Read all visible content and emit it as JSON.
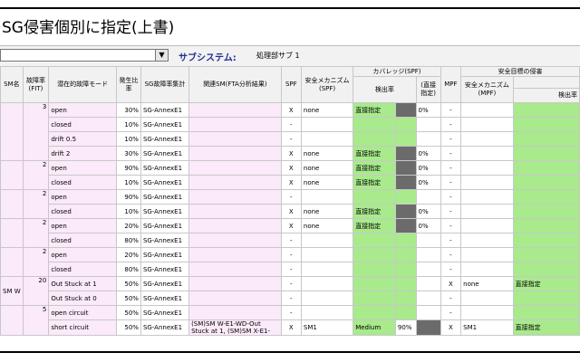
{
  "title": "SG侵害個別に指定(上書)",
  "toolbar": {
    "dropdown_value": "",
    "subsystem_label": "サブシステム:",
    "subsystem_value": "処理部サブ 1"
  },
  "headers": {
    "sm_name": "SM名",
    "fit": "故障率 (FIT)",
    "failure_mode": "潜在的故障モード",
    "ratio": "発生比率",
    "sg_aggregate": "SG故障率集計",
    "related_sm": "関連SM(FTA分析結果)",
    "spf": "SPF",
    "safety_mech_spf": "安全メカニズム (SPF)",
    "coverage_spf": "カバレッジ(SPF)",
    "detection_rate": "検出率",
    "direct_spec": "(直接指定)",
    "mpf": "MPF",
    "safety_goal_violation": "安全目標の侵害",
    "safety_mech_mpf": "安全メカニズム (MPF)",
    "detection_rate_2": "検出率"
  },
  "rows": [
    {
      "sm": "",
      "fit": "3",
      "mode": "open",
      "ratio": "30%",
      "sg": "SG-AnnexE1",
      "rel": "",
      "spf": "X",
      "mech": "none",
      "cov": "直接指定",
      "covdark": true,
      "pct": "0%",
      "mpf": "-",
      "mmech": "",
      "mcov": ""
    },
    {
      "sm": "",
      "fit": "",
      "mode": "closed",
      "ratio": "10%",
      "sg": "SG-AnnexE1",
      "rel": "",
      "spf": "-",
      "mech": "",
      "cov": "",
      "covdark": false,
      "pct": "",
      "mpf": "-",
      "mmech": "",
      "mcov": ""
    },
    {
      "sm": "",
      "fit": "",
      "mode": "drift 0.5",
      "ratio": "10%",
      "sg": "SG-AnnexE1",
      "rel": "",
      "spf": "-",
      "mech": "",
      "cov": "",
      "covdark": false,
      "pct": "",
      "mpf": "-",
      "mmech": "",
      "mcov": ""
    },
    {
      "sm": "",
      "fit": "",
      "mode": "drift 2",
      "ratio": "30%",
      "sg": "SG-AnnexE1",
      "rel": "",
      "spf": "X",
      "mech": "none",
      "cov": "直接指定",
      "covdark": true,
      "pct": "0%",
      "mpf": "-",
      "mmech": "",
      "mcov": ""
    },
    {
      "sm": "",
      "fit": "2",
      "mode": "open",
      "ratio": "90%",
      "sg": "SG-AnnexE1",
      "rel": "",
      "spf": "X",
      "mech": "none",
      "cov": "直接指定",
      "covdark": true,
      "pct": "0%",
      "mpf": "-",
      "mmech": "",
      "mcov": ""
    },
    {
      "sm": "",
      "fit": "",
      "mode": "closed",
      "ratio": "10%",
      "sg": "SG-AnnexE1",
      "rel": "",
      "spf": "X",
      "mech": "none",
      "cov": "直接指定",
      "covdark": true,
      "pct": "0%",
      "mpf": "-",
      "mmech": "",
      "mcov": ""
    },
    {
      "sm": "",
      "fit": "2",
      "mode": "open",
      "ratio": "90%",
      "sg": "SG-AnnexE1",
      "rel": "",
      "spf": "-",
      "mech": "",
      "cov": "",
      "covdark": false,
      "pct": "",
      "mpf": "-",
      "mmech": "",
      "mcov": ""
    },
    {
      "sm": "",
      "fit": "",
      "mode": "closed",
      "ratio": "10%",
      "sg": "SG-AnnexE1",
      "rel": "",
      "spf": "X",
      "mech": "none",
      "cov": "直接指定",
      "covdark": true,
      "pct": "0%",
      "mpf": "-",
      "mmech": "",
      "mcov": ""
    },
    {
      "sm": "",
      "fit": "2",
      "mode": "open",
      "ratio": "20%",
      "sg": "SG-AnnexE1",
      "rel": "",
      "spf": "X",
      "mech": "none",
      "cov": "直接指定",
      "covdark": true,
      "pct": "0%",
      "mpf": "-",
      "mmech": "",
      "mcov": ""
    },
    {
      "sm": "",
      "fit": "",
      "mode": "closed",
      "ratio": "80%",
      "sg": "SG-AnnexE1",
      "rel": "",
      "spf": "-",
      "mech": "",
      "cov": "",
      "covdark": false,
      "pct": "",
      "mpf": "-",
      "mmech": "",
      "mcov": ""
    },
    {
      "sm": "",
      "fit": "2",
      "mode": "open",
      "ratio": "20%",
      "sg": "SG-AnnexE1",
      "rel": "",
      "spf": "-",
      "mech": "",
      "cov": "",
      "covdark": false,
      "pct": "",
      "mpf": "-",
      "mmech": "",
      "mcov": ""
    },
    {
      "sm": "",
      "fit": "",
      "mode": "closed",
      "ratio": "80%",
      "sg": "SG-AnnexE1",
      "rel": "",
      "spf": "-",
      "mech": "",
      "cov": "",
      "covdark": false,
      "pct": "",
      "mpf": "-",
      "mmech": "",
      "mcov": ""
    },
    {
      "sm": "SM W",
      "fit": "20",
      "mode": "Out Stuck at 1",
      "ratio": "50%",
      "sg": "SG-AnnexE1",
      "rel": "",
      "spf": "-",
      "mech": "",
      "cov": "",
      "covdark": false,
      "pct": "",
      "mpf": "X",
      "mmech": "none",
      "mcov": "直接指定"
    },
    {
      "sm": "",
      "fit": "",
      "mode": "Out Stuck at 0",
      "ratio": "50%",
      "sg": "SG-AnnexE1",
      "rel": "",
      "spf": "-",
      "mech": "",
      "cov": "",
      "covdark": false,
      "pct": "",
      "mpf": "-",
      "mmech": "",
      "mcov": ""
    },
    {
      "sm": "",
      "fit": "5",
      "mode": "open circuit",
      "ratio": "50%",
      "sg": "SG-AnnexE1",
      "rel": "",
      "spf": "-",
      "mech": "",
      "cov": "",
      "covdark": false,
      "pct": "",
      "mpf": "-",
      "mmech": "",
      "mcov": ""
    },
    {
      "sm": "",
      "fit": "",
      "mode": "short circuit",
      "ratio": "50%",
      "sg": "SG-AnnexE1",
      "rel": "(SM)SM W-E1-WD-Out Stuck at 1, (SM)SM X-E1-",
      "spf": "X",
      "mech": "SM1",
      "cov": "Medium",
      "covdark": false,
      "pct": "90%",
      "pctdark": true,
      "mpf": "X",
      "mmech": "SM1",
      "mcov": "直接指定"
    }
  ]
}
